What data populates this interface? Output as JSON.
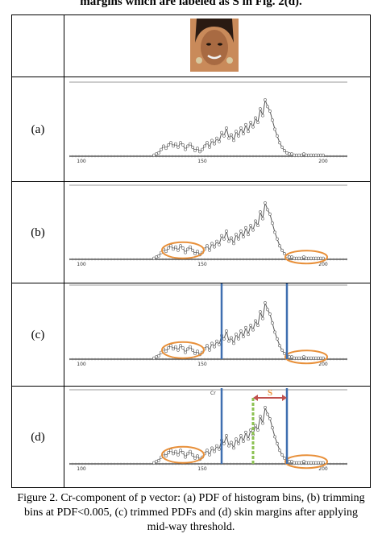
{
  "heading": "margins which are labeled as S in Fig. 2(d).",
  "panels": [
    {
      "label": "(a)",
      "trim_ovals": false,
      "bounds": false,
      "midway": false
    },
    {
      "label": "(b)",
      "trim_ovals": true,
      "bounds": false,
      "midway": false
    },
    {
      "label": "(c)",
      "trim_ovals": true,
      "bounds": true,
      "midway": false
    },
    {
      "label": "(d)",
      "trim_ovals": true,
      "bounds": true,
      "midway": true
    }
  ],
  "panel_d": {
    "axis_label": "Cr",
    "margin_label": "S"
  },
  "ticks": [
    "100",
    "150",
    "200"
  ],
  "caption": {
    "line1": "Figure 2.    Cr-component of p vector: (a) PDF of histogram bins, (b) trimming",
    "line2": "bins at PDF<0.005, (c) trimmed PDFs and (d) skin margins after applying",
    "line3": "mid-way threshold."
  },
  "colors": {
    "curve": "#555555",
    "oval": "#e8903a",
    "bound": "#3f6fb0",
    "midway": "#8cc152",
    "arrow": "#c0504d",
    "skin": "#d9a87a"
  },
  "chart_data": {
    "type": "line",
    "xlabel": "",
    "ylabel": "",
    "xlim": [
      95,
      210
    ],
    "ylim": [
      0,
      0.06
    ],
    "x": [
      130,
      131,
      132,
      133,
      134,
      135,
      136,
      137,
      138,
      139,
      140,
      141,
      142,
      143,
      144,
      145,
      146,
      147,
      148,
      149,
      150,
      151,
      152,
      153,
      154,
      155,
      156,
      157,
      158,
      159,
      160,
      161,
      162,
      163,
      164,
      165,
      166,
      167,
      168,
      169,
      170,
      171,
      172,
      173,
      174,
      175,
      176,
      177,
      178,
      179,
      180,
      181,
      182,
      183,
      184,
      185,
      186,
      187,
      188,
      189,
      190,
      191,
      192,
      193,
      194,
      195,
      196,
      197,
      198,
      199,
      200
    ],
    "series": [
      {
        "name": "",
        "values": [
          0.001,
          0.002,
          0.003,
          0.006,
          0.009,
          0.007,
          0.01,
          0.012,
          0.009,
          0.011,
          0.008,
          0.012,
          0.01,
          0.006,
          0.009,
          0.011,
          0.008,
          0.005,
          0.007,
          0.004,
          0.006,
          0.009,
          0.012,
          0.008,
          0.014,
          0.011,
          0.016,
          0.013,
          0.021,
          0.018,
          0.025,
          0.016,
          0.019,
          0.014,
          0.022,
          0.018,
          0.025,
          0.02,
          0.028,
          0.022,
          0.03,
          0.026,
          0.034,
          0.03,
          0.042,
          0.036,
          0.05,
          0.044,
          0.04,
          0.032,
          0.024,
          0.018,
          0.012,
          0.008,
          0.005,
          0.003,
          0.002,
          0.002,
          0.001,
          0.001,
          0.001,
          0.001,
          0.002,
          0.001,
          0.001,
          0.001,
          0.001,
          0.001,
          0.001,
          0.001,
          0.001
        ]
      }
    ]
  }
}
